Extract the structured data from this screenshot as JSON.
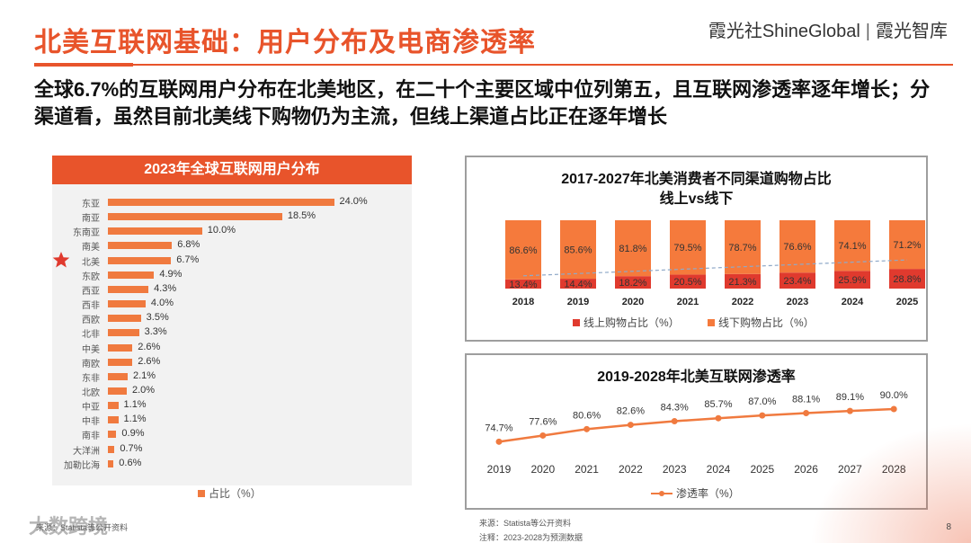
{
  "header": {
    "title": "北美互联网基础：用户分布及电商渗透率",
    "brand_left": "霞光社ShineGlobal",
    "brand_sep": "|",
    "brand_right": "霞光智库"
  },
  "subtitle": "全球6.7%的互联网用户分布在北美地区，在二十个主要区域中位列第五，且互联网渗透率逐年增长；分渠道看，虽然目前北美线下购物仍为主流，但线上渠道占比正在逐年增长",
  "footer": {
    "source_left": "来源：Statista等公开资料",
    "watermark": "大数跨境",
    "source_right": "来源：Statista等公开资料",
    "note_right": "注释：2023-2028为预测数据",
    "page_number": "8"
  },
  "colors": {
    "accent": "#E8542B",
    "bar": "#F07A3F",
    "online": "#E03A2E",
    "offline": "#F57A3C"
  },
  "chart_data": [
    {
      "type": "bar",
      "orientation": "horizontal",
      "title": "2023年全球互联网用户分布",
      "categories": [
        "东亚",
        "南亚",
        "东南亚",
        "南美",
        "北美",
        "东欧",
        "西亚",
        "西非",
        "西欧",
        "北非",
        "中美",
        "南欧",
        "东非",
        "北欧",
        "中亚",
        "中非",
        "南非",
        "大洋洲",
        "加勒比海"
      ],
      "values": [
        24.0,
        18.5,
        10.0,
        6.8,
        6.7,
        4.9,
        4.3,
        4.0,
        3.5,
        3.3,
        2.6,
        2.6,
        2.1,
        2.0,
        1.1,
        1.1,
        0.9,
        0.7,
        0.6
      ],
      "value_labels": [
        "24.0%",
        "18.5%",
        "10.0%",
        "6.8%",
        "6.7%",
        "4.9%",
        "4.3%",
        "4.0%",
        "3.5%",
        "3.3%",
        "2.6%",
        "2.6%",
        "2.1%",
        "2.0%",
        "1.1%",
        "1.1%",
        "0.9%",
        "0.7%",
        "0.6%"
      ],
      "highlight": "北美",
      "legend": "占比（%）",
      "xlim": [
        0,
        25
      ]
    },
    {
      "type": "bar",
      "stacked": true,
      "title_line1": "2017-2027年北美消费者不同渠道购物占比",
      "title_line2": "线上vs线下",
      "categories": [
        "2018",
        "2019",
        "2020",
        "2021",
        "2022",
        "2023",
        "2024",
        "2025"
      ],
      "series": [
        {
          "name": "线上购物占比（%）",
          "values": [
            13.4,
            14.4,
            18.2,
            20.5,
            21.3,
            23.4,
            25.9,
            28.8
          ],
          "labels": [
            "13.4%",
            "14.4%",
            "18.2%",
            "20.5%",
            "21.3%",
            "23.4%",
            "25.9%",
            "28.8%"
          ]
        },
        {
          "name": "线下购物占比（%）",
          "values": [
            86.6,
            85.6,
            81.8,
            79.5,
            78.7,
            76.6,
            74.1,
            71.2
          ],
          "labels": [
            "86.6%",
            "85.6%",
            "81.8%",
            "79.5%",
            "78.7%",
            "76.6%",
            "74.1%",
            "71.2%"
          ]
        }
      ],
      "trendline": true,
      "ylim": [
        0,
        100
      ]
    },
    {
      "type": "line",
      "title": "2019-2028年北美互联网渗透率",
      "categories": [
        "2019",
        "2020",
        "2021",
        "2022",
        "2023",
        "2024",
        "2025",
        "2026",
        "2027",
        "2028"
      ],
      "values": [
        74.7,
        77.6,
        80.6,
        82.6,
        84.3,
        85.7,
        87.0,
        88.1,
        89.1,
        90.0
      ],
      "value_labels": [
        "74.7%",
        "77.6%",
        "80.6%",
        "82.6%",
        "84.3%",
        "85.7%",
        "87.0%",
        "88.1%",
        "89.1%",
        "90.0%"
      ],
      "legend": "渗透率（%）",
      "ylim": [
        74,
        90
      ]
    }
  ]
}
